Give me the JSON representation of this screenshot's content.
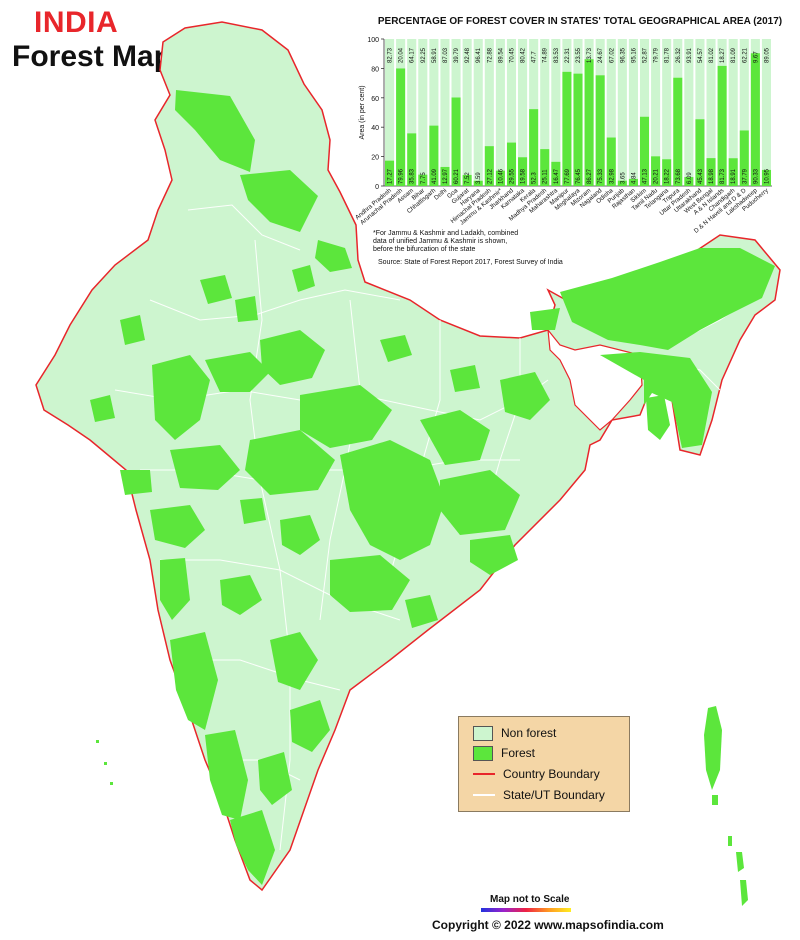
{
  "header": {
    "title": "INDIA",
    "subtitle": "Forest Map"
  },
  "chart_data": {
    "type": "bar",
    "title": "PERCENTAGE OF FOREST COVER IN STATES' TOTAL GEOGRAPHICAL AREA (2017)",
    "ylabel": "Area (in per cent)",
    "xlabel": "",
    "ylim": [
      0,
      100
    ],
    "yticks": [
      0,
      20,
      40,
      60,
      80,
      100
    ],
    "stacked": true,
    "categories": [
      "Andhra Pradesh",
      "Arunachal Pradesh",
      "Assam",
      "Bihar",
      "Chhattisgarh",
      "Delhi",
      "Goa",
      "Gujarat",
      "Haryana",
      "Himachal Pradesh",
      "Jammu & Kashmir*",
      "Jharkhand",
      "Karnataka",
      "Kerala",
      "Madhya Pradesh",
      "Maharashtra",
      "Manipur",
      "Meghalaya",
      "Mizoram",
      "Nagaland",
      "Odisha",
      "Punjab",
      "Rajasthan",
      "Sikkim",
      "Tamil Nadu",
      "Telangana",
      "Tripura",
      "Uttar Pradesh",
      "Uttarakhand",
      "West Bengal",
      "A & N Islands",
      "Chandigarh",
      "D & N Haveli and D & D",
      "Lakshadweep",
      "Puducherry"
    ],
    "series": [
      {
        "name": "Forest",
        "color": "#5ce63c",
        "values": [
          17.27,
          79.96,
          35.83,
          7.75,
          41.09,
          12.97,
          60.21,
          7.52,
          3.59,
          27.12,
          10.46,
          29.55,
          19.58,
          52.3,
          25.11,
          16.47,
          77.69,
          76.45,
          86.27,
          75.33,
          32.98,
          3.65,
          4.84,
          47.13,
          20.21,
          18.22,
          73.68,
          6.09,
          45.43,
          18.98,
          81.73,
          18.91,
          37.79,
          90.33,
          10.95
        ]
      },
      {
        "name": "Non forest",
        "color": "#cdf5cf",
        "values": [
          82.73,
          20.04,
          64.17,
          92.25,
          58.91,
          87.03,
          39.79,
          92.48,
          96.41,
          72.88,
          89.54,
          70.45,
          80.42,
          47.7,
          74.89,
          83.53,
          22.31,
          23.55,
          13.73,
          24.67,
          67.02,
          96.35,
          95.16,
          52.87,
          79.79,
          81.78,
          26.32,
          93.91,
          54.57,
          81.02,
          18.27,
          81.09,
          62.21,
          9.67,
          89.05
        ]
      }
    ],
    "notes": [
      "*For Jammu & Kashmir and Ladakh, combined",
      "data of unified Jammu & Kashmir is shown,",
      "before the bifurcation of the state"
    ],
    "source": "Source: State of Forest Report 2017, Forest Survey of India"
  },
  "legend": {
    "items": [
      {
        "label": "Non forest",
        "color": "#cdf5cf"
      },
      {
        "label": "Forest",
        "color": "#5ce63c"
      },
      {
        "label": "Country Boundary",
        "color": "#e8262b"
      },
      {
        "label": "State/UT Boundary",
        "color": "#ffffff"
      }
    ]
  },
  "footer": {
    "scale_note": "Map not to Scale",
    "copyright": "Copyright © 2022 www.mapsofindia.com"
  },
  "map": {
    "land_color": "#cdf5cf",
    "forest_color": "#5ce63c",
    "boundary_color": "#e8262b",
    "sea_color": "#ffffff"
  }
}
